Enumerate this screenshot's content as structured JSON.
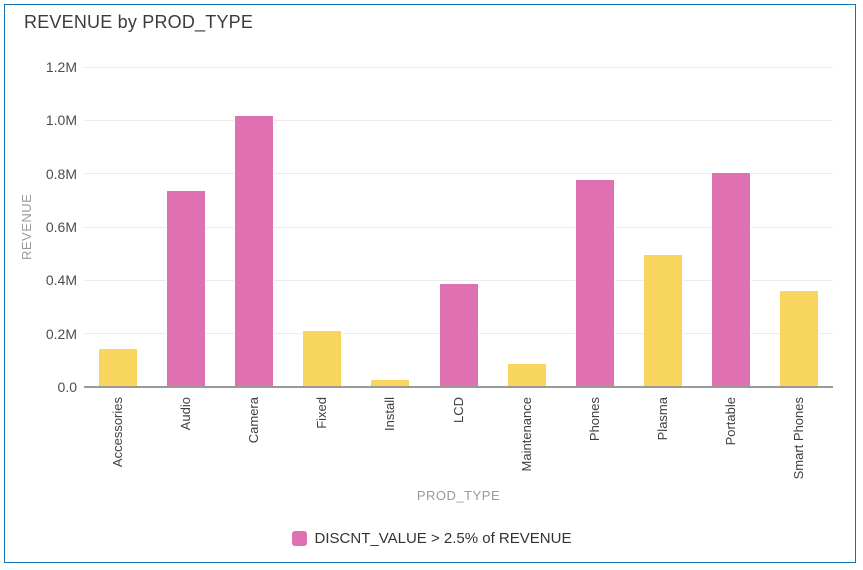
{
  "window": {
    "title": "REVENUE by PROD_TYPE"
  },
  "colors": {
    "frame_border": "#1473b4",
    "gridline": "#ebebeb",
    "axis_line": "#9a9a9a",
    "title_text": "#3c3c3c",
    "tick_text": "#4d4d4d",
    "category_text": "#3f3f3f",
    "axis_title_text": "#9b9b9b",
    "legend_text": "#333333"
  },
  "chart_data": {
    "type": "bar",
    "title": "REVENUE by PROD_TYPE",
    "xlabel": "PROD_TYPE",
    "ylabel": "REVENUE",
    "grid": true,
    "legend_position": "bottom",
    "ylim": [
      0,
      1.2
    ],
    "ytick_step": 0.2,
    "ytick_labels": [
      "0.0",
      "0.2M",
      "0.4M",
      "0.6M",
      "0.8M",
      "1.0M",
      "1.2M"
    ],
    "categories": [
      "Accessories",
      "Audio",
      "Camera",
      "Fixed",
      "Install",
      "LCD",
      "Maintenance",
      "Phones",
      "Plasma",
      "Portable",
      "Smart Phones"
    ],
    "values": [
      0.145,
      0.74,
      1.02,
      0.215,
      0.03,
      0.39,
      0.09,
      0.78,
      0.5,
      0.805,
      0.365
    ],
    "values_unit": "M",
    "highlight_flags": [
      false,
      true,
      true,
      false,
      false,
      true,
      false,
      true,
      false,
      true,
      false
    ],
    "series_colors": {
      "highlight": "#df71b2",
      "normal": "#f8d55e"
    },
    "legend": [
      {
        "label": "DISCNT_VALUE > 2.5% of REVENUE",
        "color": "#df71b2"
      }
    ]
  }
}
